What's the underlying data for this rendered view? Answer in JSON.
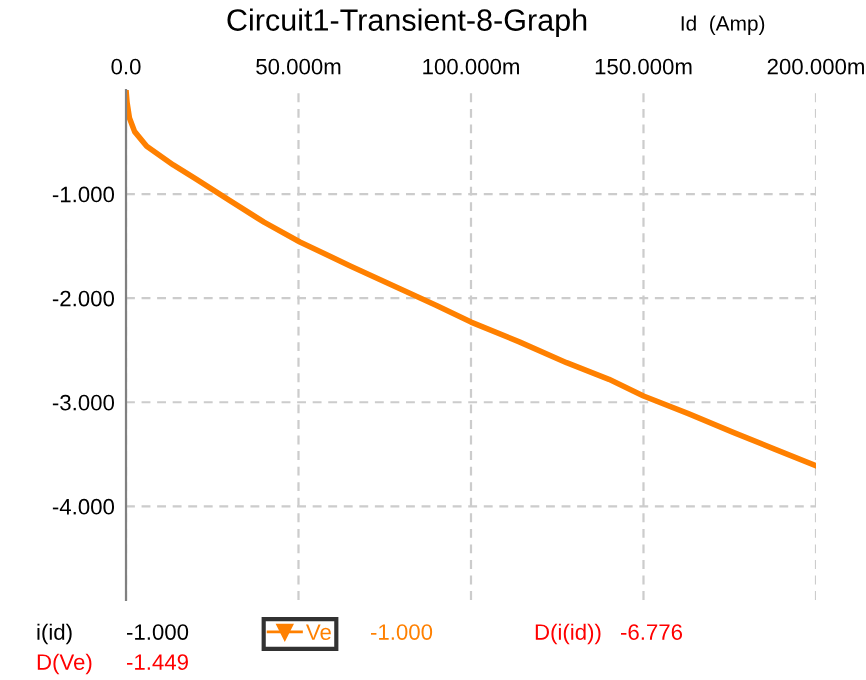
{
  "chart_data": {
    "type": "line",
    "title": "Circuit1-Transient-8-Graph",
    "ylabel": "Id  (Amp)",
    "series": [
      {
        "name": "Ve",
        "color": "#ff8000",
        "x": [
          0,
          0.3,
          1,
          2.5,
          6,
          13.7,
          20,
          30,
          40,
          50.4,
          65,
          79.4,
          90,
          100,
          114,
          127.7,
          140,
          150,
          163,
          176,
          188,
          200
        ],
        "values": [
          0,
          -0.12,
          -0.27,
          -0.4,
          -0.54,
          -0.72,
          -0.85,
          -1.06,
          -1.27,
          -1.46,
          -1.69,
          -1.91,
          -2.07,
          -2.23,
          -2.42,
          -2.62,
          -2.78,
          -2.94,
          -3.11,
          -3.29,
          -3.45,
          -3.61
        ]
      }
    ],
    "xlim": [
      0,
      200
    ],
    "ylim": [
      -4.9,
      0
    ],
    "xticks": [
      {
        "value": 0,
        "label": "0.0"
      },
      {
        "value": 50,
        "label": "50.000m"
      },
      {
        "value": 100,
        "label": "100.000m"
      },
      {
        "value": 150,
        "label": "150.000m"
      },
      {
        "value": 200,
        "label": "200.000m"
      }
    ],
    "yticks": [
      {
        "value": -1,
        "label": "-1.000"
      },
      {
        "value": -2,
        "label": "-2.000"
      },
      {
        "value": -3,
        "label": "-3.000"
      },
      {
        "value": -4,
        "label": "-4.000"
      }
    ],
    "grid": true,
    "legend": "bottom",
    "line_style": "solid",
    "annotations": [
      "i(id)",
      "-1.000",
      "-1.000",
      "D(i(id))",
      "-6.776",
      "D(Ve)",
      "-1.449"
    ]
  }
}
